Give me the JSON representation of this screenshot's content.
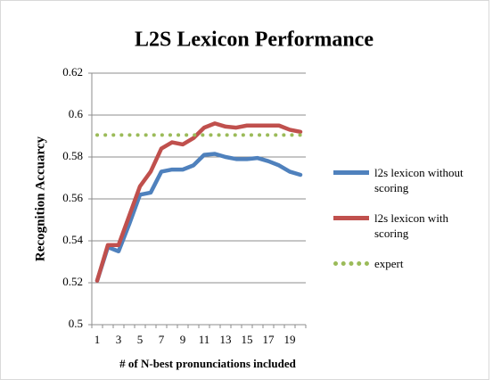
{
  "chart_data": {
    "type": "line",
    "title": "L2S Lexicon Performance",
    "x_label": "# of N-best pronunciations included",
    "y_label": "Recognition Accuarcy",
    "categories": [
      1,
      null,
      3,
      null,
      5,
      null,
      7,
      null,
      9,
      null,
      11,
      null,
      13,
      null,
      15,
      null,
      17,
      null,
      19,
      null
    ],
    "series": [
      {
        "name": "l2s lexicon without scoring",
        "color": "#4f81bd",
        "style": "solid",
        "values": [
          0.521,
          0.537,
          0.535,
          0.548,
          0.562,
          0.563,
          0.573,
          0.574,
          0.574,
          0.576,
          0.581,
          0.5815,
          0.58,
          0.579,
          0.579,
          0.5795,
          0.578,
          0.576,
          0.573,
          0.5715
        ]
      },
      {
        "name": "l2s lexicon with scoring",
        "color": "#c0504d",
        "style": "solid",
        "values": [
          0.521,
          0.538,
          0.538,
          0.552,
          0.566,
          0.573,
          0.584,
          0.587,
          0.586,
          0.589,
          0.594,
          0.596,
          0.5945,
          0.594,
          0.595,
          0.595,
          0.595,
          0.595,
          0.593,
          0.592
        ]
      },
      {
        "name": "expert",
        "color": "#9bbb59",
        "style": "dotted",
        "values": [
          0.5905,
          0.5905,
          0.5905,
          0.5905,
          0.5905,
          0.5905,
          0.5905,
          0.5905,
          0.5905,
          0.5905,
          0.5905,
          0.5905,
          0.5905,
          0.5905,
          0.5905,
          0.5905,
          0.5905,
          0.5905,
          0.5905,
          0.5905
        ]
      }
    ],
    "ylim": [
      0.5,
      0.62
    ],
    "yticks": [
      0.5,
      0.52,
      0.54,
      0.56,
      0.58,
      0.6,
      0.62
    ],
    "grid": true,
    "legend": "right"
  }
}
